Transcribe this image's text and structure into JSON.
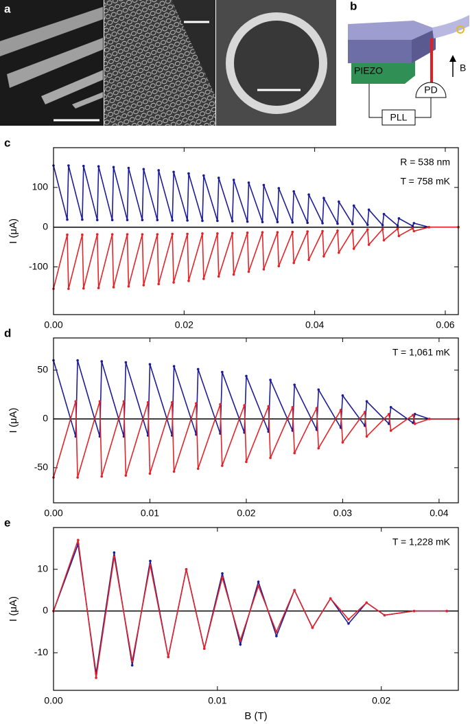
{
  "panel_a": {
    "label": "a"
  },
  "panel_b": {
    "label": "b",
    "piezo": "PIEZO",
    "pd": "PD",
    "pll": "PLL",
    "field": "B"
  },
  "chart_data": [
    {
      "type": "line",
      "panel_label": "c",
      "ylabel": "I (μA)",
      "annotations": [
        "R = 538 nm",
        "T = 758 mK"
      ],
      "xlim": [
        0,
        0.062
      ],
      "ylim": [
        -220,
        200
      ],
      "xticks": [
        {
          "value": 0,
          "label": "0.00"
        },
        0.02,
        0.04,
        0.06
      ],
      "yticks": [
        -100,
        0,
        100
      ],
      "x": [
        0,
        0.0021,
        0.0023,
        0.0044,
        0.0046,
        0.0067,
        0.0069,
        0.009,
        0.0092,
        0.0113,
        0.0115,
        0.0136,
        0.0138,
        0.0159,
        0.0161,
        0.0182,
        0.0184,
        0.0205,
        0.0207,
        0.0228,
        0.023,
        0.0251,
        0.0253,
        0.0274,
        0.0276,
        0.0297,
        0.0299,
        0.032,
        0.0322,
        0.0343,
        0.0345,
        0.0366,
        0.0368,
        0.0389,
        0.0391,
        0.0412,
        0.0414,
        0.0435,
        0.0437,
        0.0458,
        0.046,
        0.0481,
        0.0483,
        0.0504,
        0.0506,
        0.0527,
        0.0529,
        0.055,
        0.0552,
        0.0575,
        0.062
      ],
      "series": [
        {
          "color": "#1c1c96",
          "values": [
            155,
            19,
            155,
            19,
            154,
            18,
            153,
            18,
            151,
            18,
            149,
            18,
            146,
            18,
            143,
            17,
            139,
            17,
            135,
            16,
            130,
            16,
            124,
            15,
            119,
            14,
            112,
            13,
            106,
            13,
            98,
            12,
            90,
            11,
            82,
            10,
            73,
            9,
            64,
            8,
            54,
            6,
            44,
            5,
            33,
            4,
            22,
            3,
            10,
            0,
            0
          ]
        },
        {
          "color": "#e42328",
          "values": [
            -155,
            -19,
            -155,
            -19,
            -154,
            -18,
            -153,
            -18,
            -151,
            -18,
            -149,
            -18,
            -146,
            -18,
            -143,
            -17,
            -139,
            -17,
            -135,
            -16,
            -130,
            -16,
            -124,
            -15,
            -119,
            -14,
            -112,
            -13,
            -106,
            -13,
            -98,
            -12,
            -90,
            -11,
            -82,
            -10,
            -73,
            -9,
            -64,
            -8,
            -54,
            -6,
            -44,
            -5,
            -33,
            -4,
            -22,
            -3,
            -10,
            0,
            0
          ]
        }
      ]
    },
    {
      "type": "line",
      "panel_label": "d",
      "ylabel": "I (μA)",
      "annotations": [
        "T = 1,061 mK"
      ],
      "xlim": [
        0,
        0.042
      ],
      "ylim": [
        -86,
        83
      ],
      "xticks": [
        {
          "value": 0,
          "label": "0.00"
        },
        0.01,
        0.02,
        0.03,
        0.04
      ],
      "yticks": [
        -50,
        0,
        50
      ],
      "x": [
        0,
        0.0023,
        0.0025,
        0.0048,
        0.005,
        0.0073,
        0.0075,
        0.0098,
        0.01,
        0.0123,
        0.0125,
        0.0148,
        0.015,
        0.0173,
        0.0175,
        0.0198,
        0.02,
        0.0223,
        0.0225,
        0.0248,
        0.025,
        0.0273,
        0.0275,
        0.0298,
        0.03,
        0.0323,
        0.0325,
        0.0348,
        0.035,
        0.0373,
        0.0375,
        0.039,
        0.042
      ],
      "series": [
        {
          "color": "#1c1c96",
          "values": [
            60,
            -18,
            60,
            -18,
            59,
            -18,
            58,
            -17,
            56,
            -17,
            54,
            -16,
            51,
            -15,
            48,
            -14,
            44,
            -13,
            40,
            -12,
            35,
            -11,
            30,
            -9,
            24,
            -7,
            18,
            -5,
            12,
            -4,
            5,
            0,
            0
          ]
        },
        {
          "color": "#e42328",
          "values": [
            -60,
            18,
            -60,
            18,
            -59,
            18,
            -58,
            17,
            -56,
            17,
            -54,
            16,
            -51,
            15,
            -48,
            14,
            -44,
            13,
            -40,
            12,
            -35,
            11,
            -30,
            9,
            -24,
            7,
            -18,
            5,
            -12,
            4,
            -5,
            0,
            0
          ]
        }
      ]
    },
    {
      "type": "line",
      "panel_label": "e",
      "ylabel": "I (μA)",
      "xlabel": "B (T)",
      "annotations": [
        "T = 1,228 mK"
      ],
      "xlim": [
        0,
        0.0247
      ],
      "ylim": [
        -19,
        20
      ],
      "xticks": [
        {
          "value": 0,
          "label": "0.00"
        },
        0.01,
        0.02
      ],
      "yticks": [
        -10,
        0,
        10
      ],
      "x": [
        0,
        0.0015,
        0.0026,
        0.0037,
        0.0048,
        0.0059,
        0.007,
        0.0081,
        0.0092,
        0.0103,
        0.0114,
        0.0125,
        0.0136,
        0.0147,
        0.0158,
        0.0169,
        0.018,
        0.0191,
        0.0202,
        0.022,
        0.024
      ],
      "series": [
        {
          "color": "#1c1c96",
          "values": [
            0,
            16,
            -15,
            14,
            -13,
            12,
            -11,
            10,
            -9,
            9,
            -8,
            7,
            -6,
            5,
            -4,
            3,
            -3,
            2,
            -1,
            0,
            0
          ]
        },
        {
          "color": "#e42328",
          "values": [
            0,
            17,
            -16,
            13,
            -12,
            11,
            -11,
            10,
            -9,
            8,
            -7,
            6,
            -5,
            5,
            -4,
            3,
            -2,
            2,
            -1,
            0,
            0
          ]
        }
      ]
    }
  ]
}
